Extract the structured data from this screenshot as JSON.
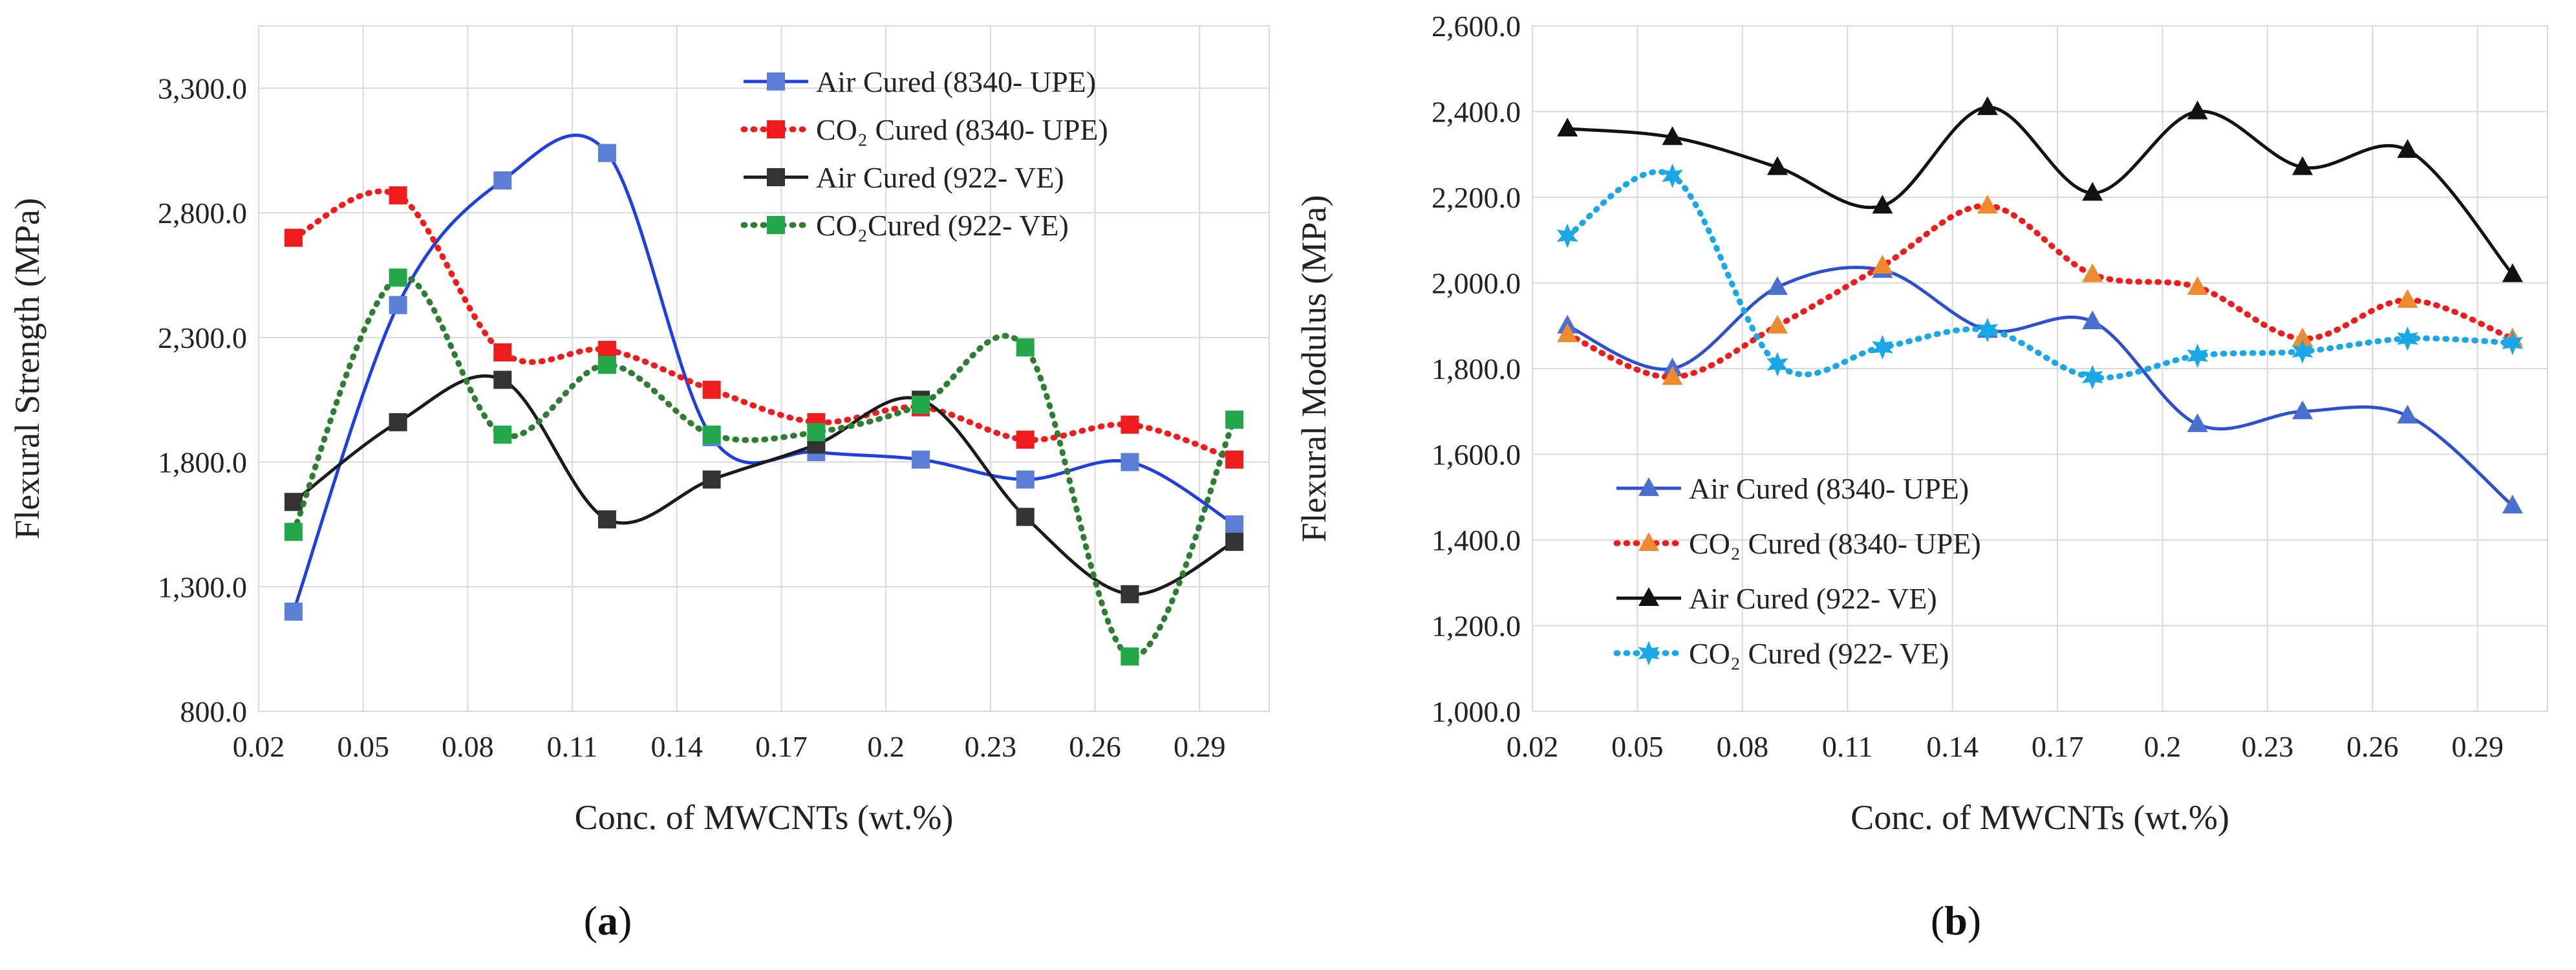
{
  "chart_data": [
    {
      "type": "line",
      "panel_label": "a",
      "xlabel": "Conc. of MWCNTs (wt.%)",
      "ylabel": "Flexural Strength (MPa)",
      "ylim": [
        800,
        3550
      ],
      "xlim": [
        0.02,
        0.31
      ],
      "x_ticks": [
        "0.02",
        "0.05",
        "0.08",
        "0.11",
        "0.14",
        "0.17",
        "0.2",
        "0.23",
        "0.26",
        "0.29"
      ],
      "y_ticks": [
        "800.0",
        "1,300.0",
        "1,800.0",
        "2,300.0",
        "2,800.0",
        "3,300.0"
      ],
      "grid": true,
      "legend_position": "top-right",
      "x": [
        0.03,
        0.06,
        0.09,
        0.12,
        0.15,
        0.18,
        0.21,
        0.24,
        0.27,
        0.3
      ],
      "series": [
        {
          "name": "Air Cured (8340- UPE)",
          "color": "#1f3fe0",
          "dash": "solid",
          "marker": "square",
          "marker_color": "#5b7fd6",
          "values": [
            1200,
            2430,
            2930,
            3040,
            1900,
            1840,
            1810,
            1730,
            1800,
            1550
          ]
        },
        {
          "name": "CO₂ Cured (8340- UPE)",
          "color": "#ee1c1c",
          "dash": "dotted",
          "marker": "square",
          "marker_color": "#ee1c1c",
          "values": [
            2700,
            2870,
            2240,
            2250,
            2090,
            1960,
            2020,
            1890,
            1950,
            1810
          ]
        },
        {
          "name": "Air Cured (922- VE)",
          "color": "#1a1a1a",
          "dash": "solid",
          "marker": "square",
          "marker_color": "#333333",
          "values": [
            1640,
            1960,
            2130,
            1570,
            1730,
            1870,
            2050,
            1580,
            1270,
            1480
          ]
        },
        {
          "name": "CO₂Cured (922- VE)",
          "color": "#2e7d32",
          "dash": "dotted",
          "marker": "square",
          "marker_color": "#22a84a",
          "values": [
            1520,
            2540,
            1910,
            2190,
            1910,
            1920,
            2030,
            2260,
            1020,
            1970
          ]
        }
      ]
    },
    {
      "type": "line",
      "panel_label": "b",
      "xlabel": "Conc. of MWCNTs (wt.%)",
      "ylabel": "Flexural Modulus (MPa)",
      "ylim": [
        1000,
        2600
      ],
      "xlim": [
        0.02,
        0.31
      ],
      "x_ticks": [
        "0.02",
        "0.05",
        "0.08",
        "0.11",
        "0.14",
        "0.17",
        "0.2",
        "0.23",
        "0.26",
        "0.29"
      ],
      "y_ticks": [
        "1,000.0",
        "1,200.0",
        "1,400.0",
        "1,600.0",
        "1,800.0",
        "2,000.0",
        "2,200.0",
        "2,400.0",
        "2,600.0"
      ],
      "grid": true,
      "legend_position": "bottom-left",
      "x": [
        0.03,
        0.06,
        0.09,
        0.12,
        0.15,
        0.18,
        0.21,
        0.24,
        0.27,
        0.3
      ],
      "series": [
        {
          "name": "Air Cured (8340- UPE)",
          "color": "#2e4fd0",
          "dash": "solid",
          "marker": "triangle",
          "marker_color": "#4a6fcf",
          "values": [
            1900,
            1800,
            1990,
            2030,
            1890,
            1910,
            1670,
            1700,
            1690,
            1480
          ]
        },
        {
          "name": "CO₂ Cured (8340- UPE)",
          "color": "#ee1c1c",
          "dash": "dotted",
          "marker": "triangle",
          "marker_color": "#f08a30",
          "values": [
            1880,
            1780,
            1900,
            2040,
            2180,
            2020,
            1990,
            1870,
            1960,
            1870
          ]
        },
        {
          "name": "Air Cured (922- VE)",
          "color": "#111111",
          "dash": "solid",
          "marker": "triangle",
          "marker_color": "#111111",
          "values": [
            2360,
            2340,
            2270,
            2180,
            2410,
            2210,
            2400,
            2270,
            2310,
            2020
          ]
        },
        {
          "name": "CO₂ Cured (922- VE)",
          "color": "#19a7e6",
          "dash": "dotted",
          "marker": "star",
          "marker_color": "#19a7e6",
          "values": [
            2110,
            2250,
            1810,
            1850,
            1890,
            1780,
            1830,
            1840,
            1870,
            1860
          ]
        }
      ]
    }
  ]
}
